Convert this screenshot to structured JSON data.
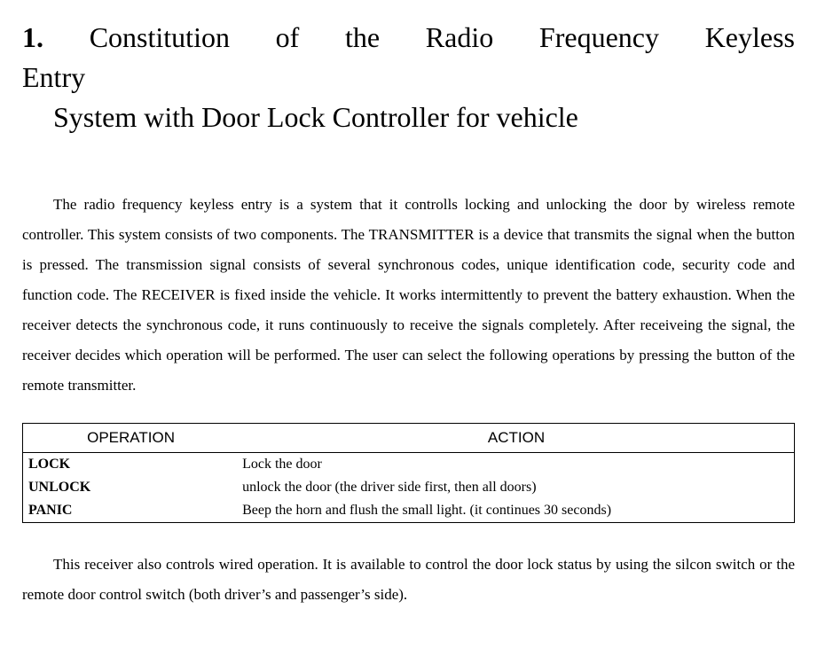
{
  "title": {
    "line1_bold": "1.",
    "line1_rest": "Constitution of the Radio Frequency Keyless",
    "line1b": "Entry",
    "line2": "System with Door Lock Controller for vehicle"
  },
  "paragraph1": "The radio frequency keyless entry is a system that it controlls locking and unlocking the door by wireless remote controller. This system consists of two components. The TRANSMITTER is a device that transmits the signal when the button is pressed. The transmission signal consists of several synchronous codes, unique identification code, security code and function code. The RECEIVER is fixed inside the vehicle. It works intermittently to prevent the battery exhaustion. When the receiver detects the synchronous code, it runs continuously to receive the signals completely. After receiveing the signal, the receiver decides which operation will be performed. The user can select the following operations by pressing the button of the remote transmitter.",
  "table": {
    "headers": {
      "op": "OPERATION",
      "ac": "ACTION"
    },
    "rows": [
      {
        "op": "LOCK",
        "ac": "Lock the door"
      },
      {
        "op": "UNLOCK",
        "ac": "unlock the door   (the driver side first, then all doors)"
      },
      {
        "op": "PANIC",
        "ac": "Beep the horn and flush the small light. (it continues 30 seconds)"
      }
    ]
  },
  "paragraph2": "This receiver also controls wired operation. It is available to control the door lock status by using the     silcon switch or the remote door control switch (both driver’s and passenger’s side)."
}
